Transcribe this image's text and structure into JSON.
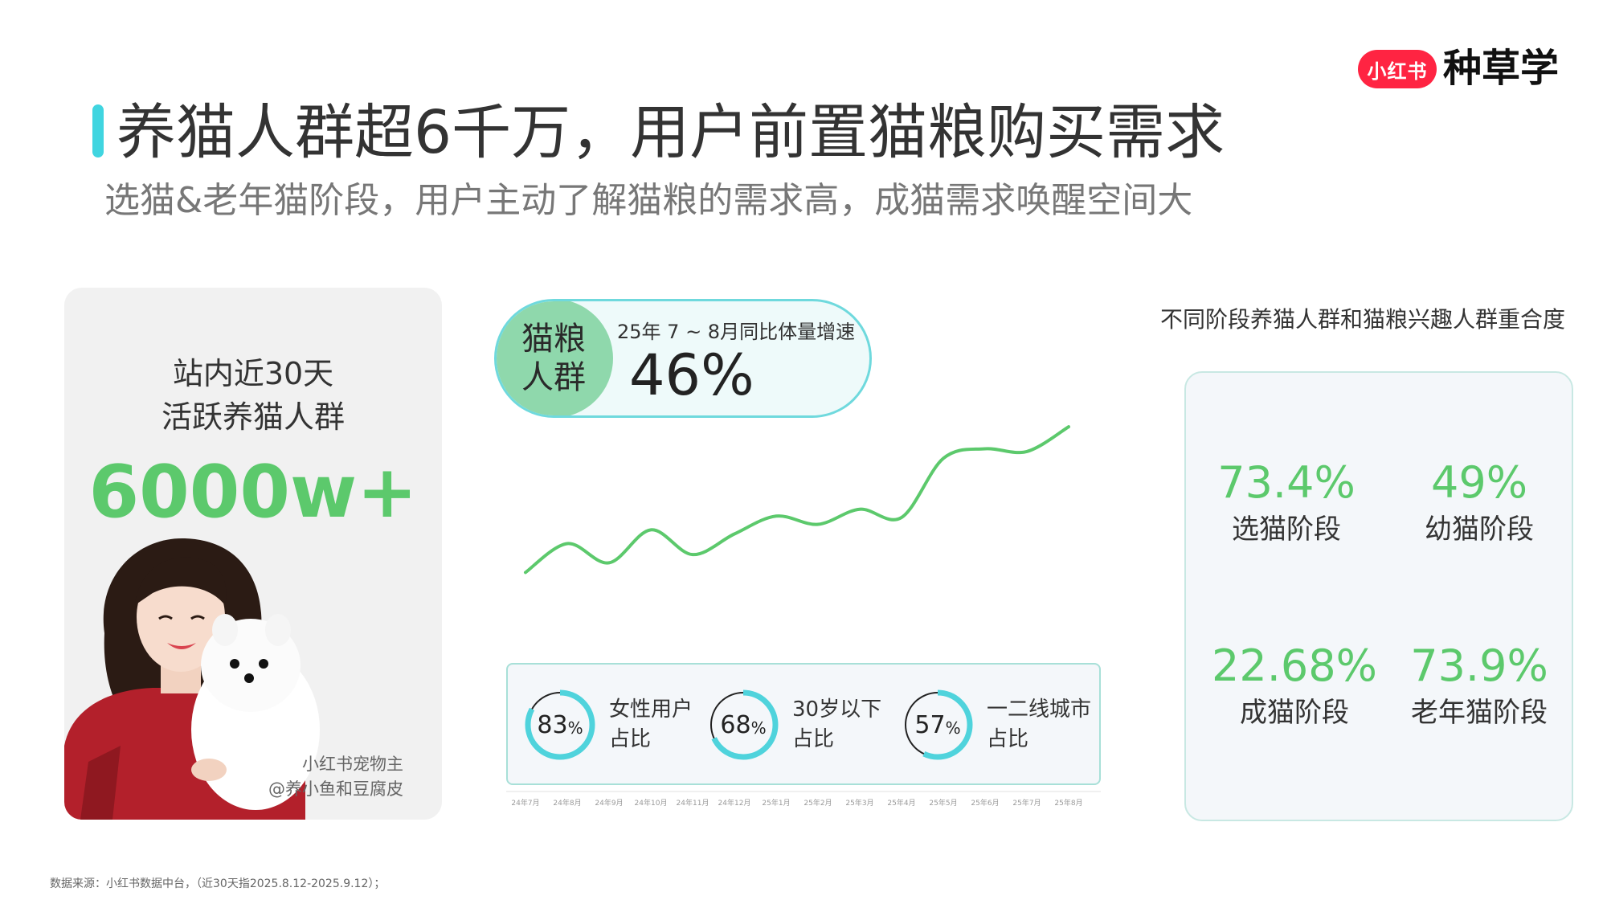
{
  "brand": {
    "badge": "小红书",
    "name": "种草学"
  },
  "title": "养猫人群超6千万，用户前置猫粮购买需求",
  "subtitle": "选猫&老年猫阶段，用户主动了解猫粮的需求高，成猫需求唤醒空间大",
  "left_card": {
    "line1": "站内近30天",
    "line2": "活跃养猫人群",
    "value": "6000w+",
    "credit_line1": "小红书宠物主",
    "credit_line2": "@养小鱼和豆腐皮"
  },
  "growth": {
    "tag_line1": "猫粮",
    "tag_line2": "人群",
    "caption": "25年 7 ~ 8月同比体量增速",
    "value": "46%"
  },
  "chart_data": {
    "type": "line",
    "x": [
      "24年7月",
      "24年8月",
      "24年9月",
      "24年10月",
      "24年11月",
      "24年12月",
      "25年1月",
      "25年2月",
      "25年3月",
      "25年4月",
      "25年5月",
      "25年6月",
      "25年7月",
      "25年8月"
    ],
    "series": [
      {
        "values": [
          22,
          43,
          29,
          53,
          35,
          50,
          63,
          57,
          68,
          62,
          105,
          112,
          110,
          128
        ]
      }
    ],
    "color": "#5cc96c",
    "ylim": [
      0,
      150
    ],
    "grid": false
  },
  "stats": [
    {
      "value": "83",
      "unit": "%",
      "label1": "女性用户",
      "label2": "占比",
      "fraction": 0.83
    },
    {
      "value": "68",
      "unit": "%",
      "label1": "30岁以下",
      "label2": "占比",
      "fraction": 0.68
    },
    {
      "value": "57",
      "unit": "%",
      "label1": "一二线城市",
      "label2": "占比",
      "fraction": 0.57
    }
  ],
  "overlap": {
    "title": "不同阶段养猫人群和猫粮兴趣人群重合度",
    "items": [
      {
        "value": "73.4%",
        "label": "选猫阶段"
      },
      {
        "value": "49%",
        "label": "幼猫阶段"
      },
      {
        "value": "22.68%",
        "label": "成猫阶段"
      },
      {
        "value": "73.9%",
        "label": "老年猫阶段"
      }
    ]
  },
  "footnote": "数据来源：小红书数据中台，（近30天指2025.8.12-2025.9.12）；",
  "colors": {
    "accent": "#40d5e0",
    "green": "#5cc96c",
    "brand_red": "#ff2442",
    "ring": "#4fd3dc"
  }
}
